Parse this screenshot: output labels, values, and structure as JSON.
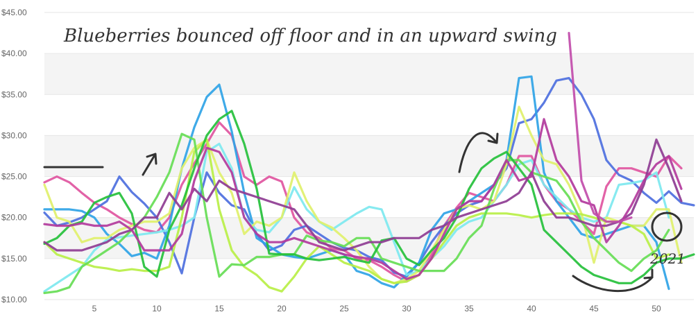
{
  "chart_data": {
    "type": "line",
    "title": "",
    "xlabel": "",
    "ylabel": "",
    "xlim": [
      1,
      53
    ],
    "ylim": [
      10,
      45
    ],
    "x_ticks": [
      5,
      10,
      15,
      20,
      25,
      30,
      35,
      40,
      45,
      50
    ],
    "y_ticks": [
      10,
      15,
      20,
      25,
      30,
      35,
      40,
      45
    ],
    "y_tick_labels": [
      "$10.00",
      "$15.00",
      "$20.00",
      "$25.00",
      "$30.00",
      "$35.00",
      "$40.00",
      "$45.00"
    ],
    "grid": "horizontal-bands",
    "legend": "none",
    "annotations": [
      {
        "text": "Blueberries bounced off floor and in an upward swing"
      },
      {
        "text": "2021"
      }
    ],
    "series": [
      {
        "color": "#e0559f",
        "x": [
          1,
          2,
          3,
          4,
          5,
          6,
          7,
          8,
          9,
          10,
          11,
          12,
          13,
          14,
          15,
          16,
          17,
          18,
          19,
          20,
          21,
          22,
          23,
          24,
          25,
          26,
          27,
          28,
          29,
          30,
          31,
          32,
          33,
          34,
          35,
          36,
          37,
          38,
          39,
          40,
          41,
          42,
          43,
          44,
          45,
          46,
          47,
          48,
          49,
          50,
          51,
          52
        ],
        "values": [
          24.3,
          25,
          24.3,
          23,
          21.8,
          21,
          20,
          19.2,
          18.5,
          18.2,
          20,
          24,
          26.6,
          29,
          31.6,
          30,
          25,
          24,
          25,
          24.4,
          20,
          18.2,
          17.5,
          16.2,
          16,
          15,
          14.8,
          14,
          13,
          12.2,
          13,
          15.5,
          19,
          21.2,
          23,
          22.5,
          22,
          24,
          27.5,
          27.5,
          24,
          22,
          21,
          19.5,
          18,
          23.8,
          26,
          26,
          25.5,
          25,
          27.5,
          26
        ]
      },
      {
        "color": "#4d6fde",
        "x": [
          1,
          2,
          3,
          4,
          5,
          6,
          7,
          8,
          9,
          10,
          11,
          12,
          13,
          14,
          15,
          16,
          17,
          18,
          19,
          20,
          21,
          22,
          23,
          24,
          25,
          26,
          27,
          28,
          29,
          30,
          31,
          32,
          33,
          34,
          35,
          36,
          37,
          38,
          39,
          40,
          41,
          42,
          43,
          44,
          45,
          46,
          47,
          48,
          49,
          50,
          51,
          52,
          53
        ],
        "values": [
          20.6,
          19,
          19.4,
          20,
          21,
          22,
          25,
          23.1,
          21.7,
          20,
          17,
          13.2,
          20,
          25.5,
          23,
          21.5,
          21,
          18,
          16,
          16.6,
          18.5,
          19,
          18,
          17,
          16.3,
          16,
          15.2,
          14.8,
          13.3,
          12.8,
          14.5,
          17,
          19,
          20.5,
          21.5,
          22,
          24,
          26,
          31.5,
          32,
          34,
          36.7,
          37,
          35,
          32,
          27,
          25.2,
          24.5,
          23,
          21.8,
          23.2,
          21.8,
          21.5
        ]
      },
      {
        "color": "#2fa3e6",
        "x": [
          1,
          2,
          3,
          4,
          5,
          6,
          7,
          8,
          9,
          10,
          11,
          12,
          13,
          14,
          15,
          16,
          17,
          18,
          19,
          20,
          21,
          22,
          23,
          24,
          25,
          26,
          27,
          28,
          29,
          30,
          31,
          32,
          33,
          34,
          35,
          36,
          37,
          38,
          39,
          40,
          41,
          42,
          43,
          44,
          45,
          46,
          47,
          48,
          49,
          50,
          51
        ],
        "values": [
          21,
          21,
          21,
          20.8,
          20,
          18,
          16.8,
          15.3,
          15.7,
          15,
          19,
          26,
          31,
          34.7,
          36.2,
          30.5,
          23,
          17.5,
          16.5,
          15.5,
          15.2,
          15,
          15.5,
          16,
          15.5,
          13.5,
          13,
          12,
          11.5,
          13,
          14.5,
          18.5,
          20.5,
          21,
          22,
          23,
          24,
          27,
          37,
          37.2,
          25.5,
          22,
          20,
          18,
          17.5,
          18,
          18.5,
          19,
          19,
          17,
          11.3
        ]
      },
      {
        "color": "#7de8ef",
        "x": [
          1,
          2,
          3,
          4,
          5,
          6,
          7,
          8,
          9,
          10,
          11,
          12,
          13,
          14,
          15,
          16,
          17,
          18,
          19,
          20,
          21,
          22,
          23,
          24,
          25,
          26,
          27,
          28,
          29,
          30,
          31,
          32,
          33,
          34,
          35,
          36,
          37,
          38,
          39,
          40,
          41,
          42,
          43,
          44,
          45,
          46,
          47,
          48,
          49,
          50,
          51
        ],
        "values": [
          11,
          12,
          13,
          14,
          16,
          17.3,
          17.6,
          17.8,
          18,
          18.2,
          18.5,
          19,
          20,
          28,
          29,
          26,
          20,
          18.5,
          18.2,
          20,
          23.7,
          21,
          19.5,
          18.5,
          19.5,
          20.5,
          21.3,
          21,
          17,
          13,
          13.5,
          15,
          16.5,
          18.5,
          19.5,
          20,
          22,
          24,
          26.5,
          27,
          24,
          22.5,
          21,
          20,
          19.5,
          20,
          24,
          24.2,
          24.5,
          25.5,
          20
        ]
      },
      {
        "color": "#dff06b",
        "x": [
          1,
          2,
          3,
          4,
          5,
          6,
          7,
          8,
          9,
          10,
          11,
          12,
          13,
          14,
          15,
          16,
          17,
          18,
          19,
          20,
          21,
          22,
          23,
          24,
          25,
          26,
          27,
          28,
          29,
          30,
          31,
          32,
          33,
          34,
          35,
          36,
          37,
          38,
          39,
          40,
          41,
          42,
          43,
          44,
          45,
          46,
          47,
          48,
          49,
          50,
          51,
          52
        ],
        "values": [
          24,
          20,
          19.5,
          17,
          17.5,
          17.5,
          18.5,
          19,
          19.5,
          19.5,
          20.5,
          26,
          28.5,
          29.5,
          25.5,
          23,
          18,
          19.5,
          19,
          20,
          25.5,
          22,
          19.5,
          18.8,
          17.5,
          16,
          14,
          12.5,
          12,
          12.5,
          13.5,
          16,
          18.5,
          21,
          21.5,
          21,
          22,
          26.5,
          33.5,
          30,
          27,
          26.5,
          24,
          20.5,
          14.5,
          20,
          19.5,
          19,
          19,
          21,
          21,
          14.5
        ]
      },
      {
        "color": "#b8ef46",
        "x": [
          1,
          2,
          3,
          4,
          5,
          6,
          7,
          8,
          9,
          10,
          11,
          12,
          13,
          14,
          15,
          16,
          17,
          18,
          19,
          20,
          21,
          22,
          23,
          24,
          25,
          26,
          27,
          28,
          29,
          30,
          31,
          32,
          33,
          34,
          35,
          36,
          37,
          38,
          39,
          40,
          41,
          42,
          43,
          44,
          45,
          46,
          47,
          48,
          49,
          50,
          51
        ],
        "values": [
          17,
          15.5,
          15,
          14.5,
          14,
          13.8,
          13.5,
          13.7,
          13.5,
          13.5,
          14,
          20,
          28,
          29.5,
          21,
          16,
          14,
          13,
          11.5,
          11,
          12.8,
          15,
          16.5,
          15.5,
          14.5,
          14,
          13.5,
          12.5,
          12,
          12.2,
          13,
          15,
          17,
          19,
          20,
          20.5,
          20.5,
          20.5,
          20.3,
          20,
          20.3,
          20.5,
          20.5,
          20.4,
          20,
          19.5,
          19.5,
          19,
          18,
          15,
          15.5
        ]
      },
      {
        "color": "#66dd55",
        "x": [
          1,
          2,
          3,
          4,
          5,
          6,
          7,
          8,
          9,
          10,
          11,
          12,
          13,
          14,
          15,
          16,
          17,
          18,
          19,
          20,
          21,
          22,
          23,
          24,
          25,
          26,
          27,
          28,
          29,
          30,
          31,
          32,
          33,
          34,
          35,
          36,
          37,
          38,
          39,
          40,
          41,
          42,
          43,
          44,
          45,
          46,
          47,
          48,
          49,
          50,
          51
        ],
        "values": [
          10.8,
          11,
          11.5,
          14,
          15,
          16,
          17,
          18.5,
          20,
          22.5,
          25.5,
          30.2,
          29.5,
          20,
          12.8,
          14.3,
          14.2,
          15.2,
          15.2,
          15.5,
          15.5,
          17.8,
          17.2,
          17,
          16.5,
          17.5,
          17.5,
          15,
          14.5,
          14,
          13.5,
          13.5,
          13.5,
          15,
          17.5,
          19,
          23.5,
          27,
          27,
          25.5,
          25,
          24.5,
          22.5,
          19.5,
          17.5,
          16,
          14.5,
          13.5,
          15,
          16,
          18.5
        ]
      },
      {
        "color": "#25c03b",
        "x": [
          1,
          2,
          3,
          4,
          5,
          6,
          7,
          8,
          9,
          10,
          11,
          12,
          13,
          14,
          15,
          16,
          17,
          18,
          19,
          20,
          21,
          22,
          23,
          24,
          25,
          26,
          27,
          28,
          29,
          30,
          31,
          32,
          33,
          34,
          35,
          36,
          37,
          38,
          39,
          40,
          41,
          42,
          43,
          44,
          45,
          46,
          47,
          48,
          49,
          50,
          51,
          52,
          53
        ],
        "values": [
          16.8,
          17.5,
          19,
          19.5,
          21.8,
          22.5,
          23,
          20.5,
          14,
          12.8,
          18.5,
          21.5,
          26,
          30,
          32,
          33,
          29,
          23.5,
          15.6,
          15.5,
          15.5,
          15,
          14.8,
          15,
          15.2,
          14.8,
          14.5,
          17.2,
          17.5,
          15,
          14.2,
          16,
          17.5,
          20,
          23.5,
          26,
          27.2,
          28,
          26,
          24,
          18.5,
          17,
          15.5,
          14,
          13,
          12.5,
          12,
          12,
          13,
          14.5,
          15,
          15,
          15.5
        ]
      },
      {
        "color": "#8e3c92",
        "x": [
          1,
          2,
          3,
          4,
          5,
          6,
          7,
          8,
          9,
          10,
          11,
          12,
          13,
          14,
          15,
          16,
          17,
          18,
          19,
          20,
          21,
          22,
          23,
          24,
          25,
          26,
          27,
          28,
          29,
          30,
          31,
          32,
          33,
          34,
          35,
          36,
          37,
          38,
          39,
          40,
          41,
          42,
          43,
          44,
          45,
          46,
          47,
          48,
          49,
          50,
          51,
          52
        ],
        "values": [
          17,
          16,
          16,
          16,
          16.5,
          17,
          18,
          18.5,
          20,
          20,
          23,
          21,
          23.5,
          22,
          24.5,
          23.5,
          23,
          22.5,
          22,
          21.5,
          21,
          19,
          17,
          16.5,
          16,
          16.5,
          17,
          17,
          17.5,
          17.5,
          17.5,
          18.5,
          19,
          20,
          20.5,
          21,
          21.5,
          22,
          23,
          25.5,
          22,
          20,
          20,
          19.5,
          19,
          19,
          19.5,
          20.5,
          24,
          29.5,
          26,
          22
        ]
      },
      {
        "color": "#b2399c",
        "x": [
          1,
          2,
          3,
          4,
          5,
          6,
          7,
          8,
          9,
          10,
          11,
          12,
          13,
          14,
          15,
          16,
          17,
          18,
          19,
          20,
          21,
          22,
          23,
          24,
          25,
          26,
          27,
          28,
          29,
          30,
          31,
          32,
          33,
          34,
          35,
          36,
          37,
          38,
          39,
          40,
          41,
          42,
          43,
          44,
          45,
          46,
          47,
          48,
          49,
          50,
          51,
          52
        ],
        "values": [
          19.2,
          19,
          19,
          19.3,
          19,
          19,
          19.5,
          18.5,
          16,
          16,
          16,
          18,
          24.5,
          28.5,
          28,
          25.5,
          20,
          18,
          17,
          17,
          17.5,
          17,
          16.5,
          16,
          15.5,
          15.2,
          15,
          14.5,
          13.5,
          12.5,
          13,
          15,
          18,
          21,
          22,
          22,
          24,
          27,
          24.5,
          25,
          32,
          27,
          25,
          22,
          21.5,
          17,
          19,
          21.5,
          24.5,
          26.5,
          27.5,
          23.5
        ]
      },
      {
        "color": "#c14caa",
        "x": [
          43,
          44,
          45,
          46,
          47,
          48
        ],
        "values": [
          42.5,
          24.5,
          20.5,
          19.5,
          19.5,
          20
        ]
      }
    ]
  }
}
